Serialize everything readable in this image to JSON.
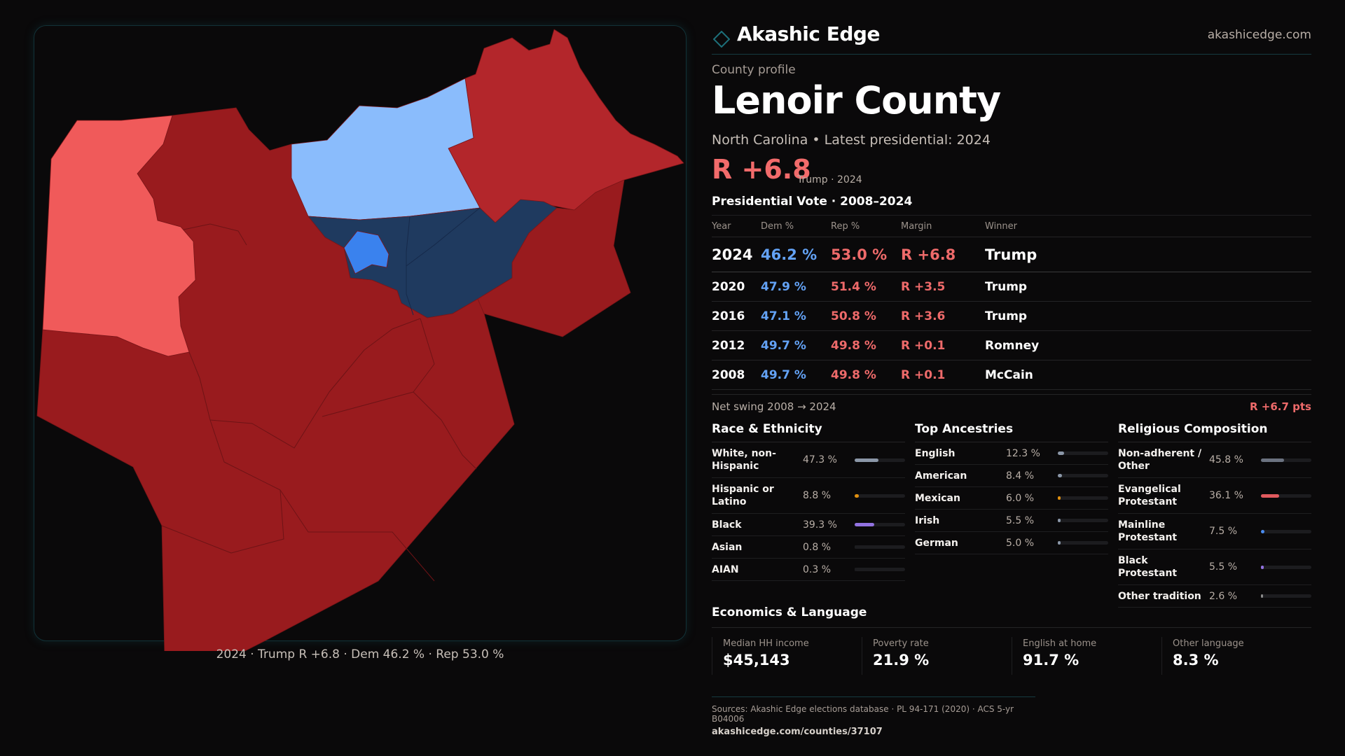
{
  "map": {
    "caption": "2024 · Trump R +6.8 · Dem 46.2 % · Rep 53.0 %",
    "colors": {
      "rep_strong": "#991b1e",
      "rep_mid": "#b3262b",
      "rep_light": "#f05a5a",
      "dem_strong": "#1f3a5f",
      "dem_mid": "#3a82ee",
      "dem_light": "#8abcfc"
    }
  },
  "header": {
    "brand": "Akashic Edge",
    "url": "akashicedge.com"
  },
  "profile": {
    "eyebrow": "County profile",
    "title": "Lenoir County",
    "subtitle": "North Carolina • Latest presidential: 2024",
    "margin": "R +6.8",
    "margin_note": "Trump · 2024"
  },
  "votes": {
    "title": "Presidential Vote · 2008–2024",
    "headers": {
      "year": "Year",
      "dem": "Dem %",
      "rep": "Rep %",
      "margin": "Margin",
      "winner": "Winner"
    },
    "rows": [
      {
        "year": "2024",
        "dem": "46.2 %",
        "rep": "53.0 %",
        "margin": "R +6.8",
        "winner": "Trump"
      },
      {
        "year": "2020",
        "dem": "47.9 %",
        "rep": "51.4 %",
        "margin": "R +3.5",
        "winner": "Trump"
      },
      {
        "year": "2016",
        "dem": "47.1 %",
        "rep": "50.8 %",
        "margin": "R +3.6",
        "winner": "Trump"
      },
      {
        "year": "2012",
        "dem": "49.7 %",
        "rep": "49.8 %",
        "margin": "R +0.1",
        "winner": "Romney"
      },
      {
        "year": "2008",
        "dem": "49.7 %",
        "rep": "49.8 %",
        "margin": "R +0.1",
        "winner": "McCain"
      }
    ],
    "swing_label": "Net swing 2008 → 2024",
    "swing_value": "R +6.7 pts"
  },
  "race": {
    "title": "Race & Ethnicity",
    "items": [
      {
        "label": "White, non-Hispanic",
        "value": "47.3 %",
        "pct": 47.3,
        "color": "#8b97a8"
      },
      {
        "label": "Hispanic or Latino",
        "value": "8.8 %",
        "pct": 8.8,
        "color": "#e0900f"
      },
      {
        "label": "Black",
        "value": "39.3 %",
        "pct": 39.3,
        "color": "#9272e0"
      },
      {
        "label": "Asian",
        "value": "0.8 %",
        "pct": 0.8,
        "color": "#2a2a2e"
      },
      {
        "label": "AIAN",
        "value": "0.3 %",
        "pct": 0.3,
        "color": "#2a2a2e"
      }
    ]
  },
  "ancestry": {
    "title": "Top Ancestries",
    "items": [
      {
        "label": "English",
        "value": "12.3 %",
        "pct": 12.3,
        "color": "#8b97a8"
      },
      {
        "label": "American",
        "value": "8.4 %",
        "pct": 8.4,
        "color": "#8b97a8"
      },
      {
        "label": "Mexican",
        "value": "6.0 %",
        "pct": 6.0,
        "color": "#e0900f"
      },
      {
        "label": "Irish",
        "value": "5.5 %",
        "pct": 5.5,
        "color": "#8b97a8"
      },
      {
        "label": "German",
        "value": "5.0 %",
        "pct": 5.0,
        "color": "#8b97a8"
      }
    ]
  },
  "religion": {
    "title": "Religious Composition",
    "items": [
      {
        "label": "Non-adherent / Other",
        "value": "45.8 %",
        "pct": 45.8,
        "color": "#6b7280"
      },
      {
        "label": "Evangelical Protestant",
        "value": "36.1 %",
        "pct": 36.1,
        "color": "#e05a5e"
      },
      {
        "label": "Mainline Protestant",
        "value": "7.5 %",
        "pct": 7.5,
        "color": "#4a8cf0"
      },
      {
        "label": "Black Protestant",
        "value": "5.5 %",
        "pct": 5.5,
        "color": "#9272e0"
      },
      {
        "label": "Other tradition",
        "value": "2.6 %",
        "pct": 2.6,
        "color": "#8b8b8b"
      }
    ]
  },
  "economics": {
    "title": "Economics & Language",
    "cells": [
      {
        "label": "Median HH income",
        "value": "$45,143"
      },
      {
        "label": "Poverty rate",
        "value": "21.9 %"
      },
      {
        "label": "English at home",
        "value": "91.7 %"
      },
      {
        "label": "Other language",
        "value": "8.3 %"
      }
    ]
  },
  "footer": {
    "sources": "Sources: Akashic Edge elections database · PL 94-171 (2020) · ACS 5-yr B04006",
    "url": "akashicedge.com/counties/37107"
  }
}
